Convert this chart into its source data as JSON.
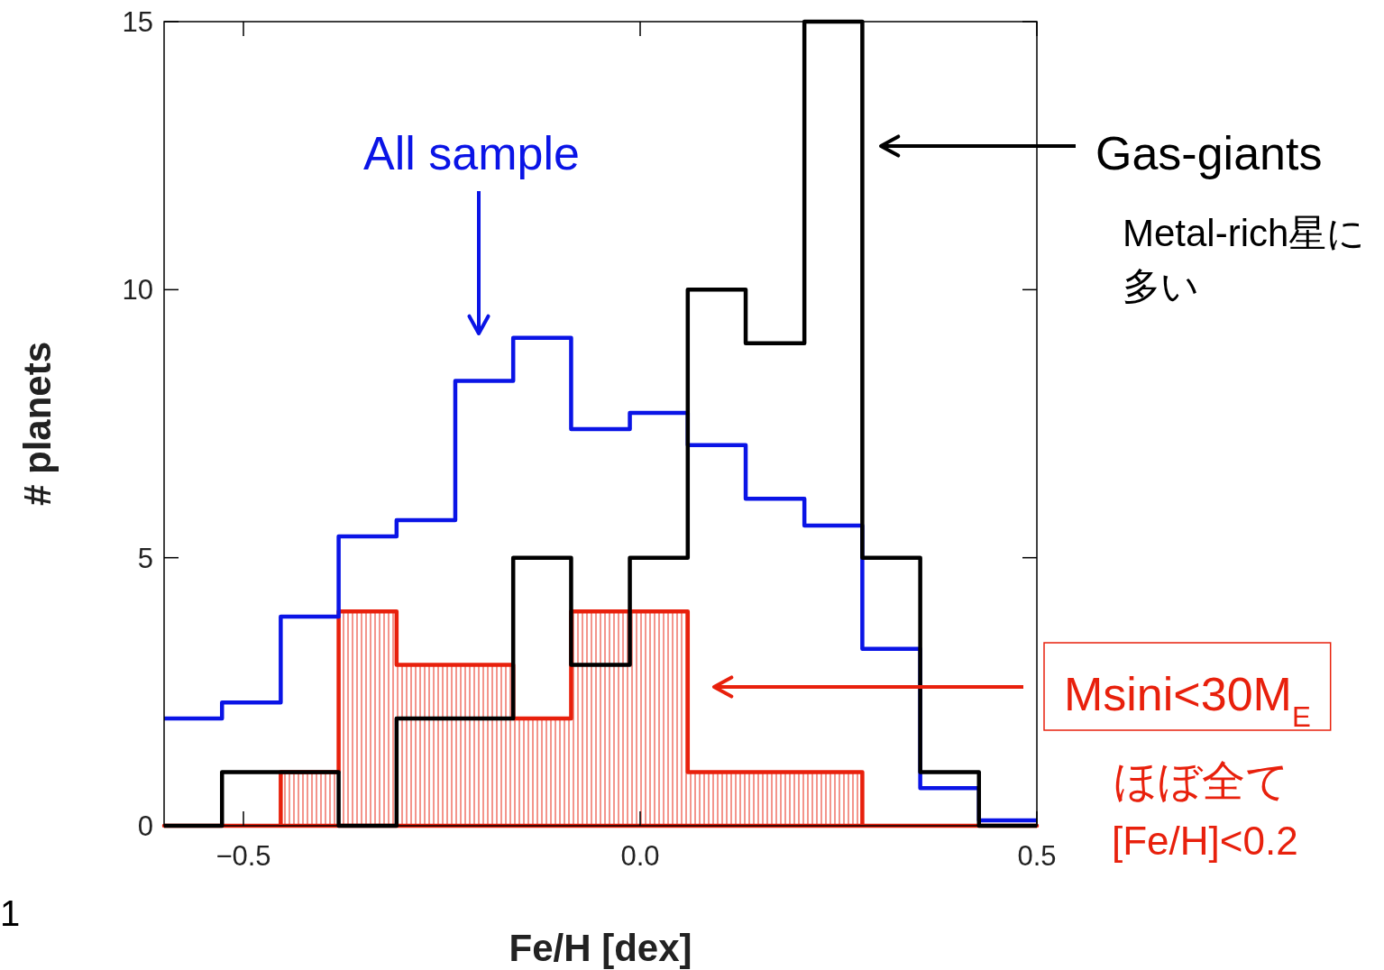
{
  "chart_data": {
    "type": "step",
    "xlabel": "Fe/H   [dex]",
    "ylabel": "# planets",
    "x": [
      -0.6,
      -0.527,
      -0.453,
      -0.38,
      -0.307,
      -0.233,
      -0.16,
      -0.087,
      -0.013,
      0.06,
      0.133,
      0.207,
      0.28,
      0.353,
      0.427,
      0.5
    ],
    "series": [
      {
        "name": "All sample",
        "color": "#0a14e6",
        "values": [
          2,
          2.3,
          3.9,
          5.4,
          5.7,
          8.3,
          9.1,
          7.4,
          7.7,
          7.1,
          6.1,
          5.6,
          3.3,
          0.7,
          0.1,
          0.1
        ]
      },
      {
        "name": "Gas-giants",
        "color": "#000000",
        "values": [
          0,
          1,
          1,
          0,
          2,
          2,
          5,
          3,
          5,
          10,
          9,
          15,
          5,
          1,
          0,
          0
        ]
      },
      {
        "name": "Msini<30M$_{E}$",
        "type": "area",
        "color": "#e8200c",
        "values": [
          0,
          0,
          1,
          4,
          3,
          3,
          2,
          4,
          4,
          1,
          1,
          1,
          0,
          0,
          0,
          0
        ]
      }
    ],
    "xlim": [
      -0.6,
      0.5
    ],
    "ylim": [
      0,
      15
    ],
    "xticks": [
      {
        "value": -0.5,
        "label": "−0.5"
      },
      {
        "value": 0,
        "label": "0.0"
      },
      0.5
    ],
    "yticks": [
      0,
      5,
      10,
      15
    ],
    "annotations": [
      "Metal-rich星に多い",
      "ほぼ全て",
      "[Fe/H]<0.2",
      "1"
    ]
  }
}
